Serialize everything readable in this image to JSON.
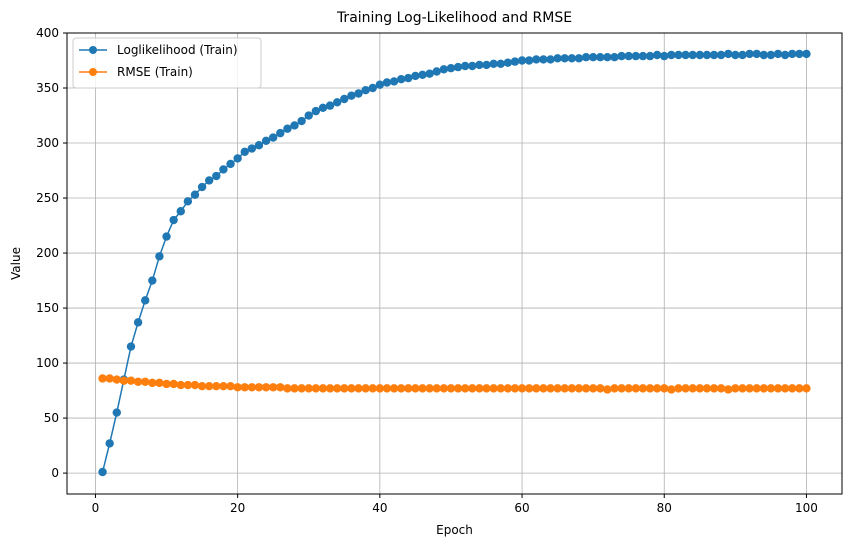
{
  "chart_data": {
    "type": "line",
    "title": "Training Log-Likelihood and RMSE",
    "xlabel": "Epoch",
    "ylabel": "Value",
    "xlim": [
      -4,
      105
    ],
    "ylim": [
      -19,
      400
    ],
    "xticks": [
      0,
      20,
      40,
      60,
      80,
      100
    ],
    "yticks": [
      0,
      50,
      100,
      150,
      200,
      250,
      300,
      350,
      400
    ],
    "grid": true,
    "legend_position": "top-left",
    "marker": "circle",
    "x": [
      1,
      2,
      3,
      4,
      5,
      6,
      7,
      8,
      9,
      10,
      11,
      12,
      13,
      14,
      15,
      16,
      17,
      18,
      19,
      20,
      21,
      22,
      23,
      24,
      25,
      26,
      27,
      28,
      29,
      30,
      31,
      32,
      33,
      34,
      35,
      36,
      37,
      38,
      39,
      40,
      41,
      42,
      43,
      44,
      45,
      46,
      47,
      48,
      49,
      50,
      51,
      52,
      53,
      54,
      55,
      56,
      57,
      58,
      59,
      60,
      61,
      62,
      63,
      64,
      65,
      66,
      67,
      68,
      69,
      70,
      71,
      72,
      73,
      74,
      75,
      76,
      77,
      78,
      79,
      80,
      81,
      82,
      83,
      84,
      85,
      86,
      87,
      88,
      89,
      90,
      91,
      92,
      93,
      94,
      95,
      96,
      97,
      98,
      99,
      100
    ],
    "series": [
      {
        "name": "Loglikelihood (Train)",
        "color": "#1f77b4",
        "values": [
          1,
          27,
          55,
          85,
          115,
          137,
          157,
          175,
          197,
          215,
          230,
          238,
          247,
          253,
          260,
          266,
          270,
          276,
          281,
          286,
          292,
          295,
          298,
          302,
          305,
          309,
          313,
          316,
          320,
          325,
          329,
          332,
          334,
          337,
          340,
          343,
          345,
          348,
          350,
          353,
          355,
          356,
          358,
          359,
          361,
          362,
          363,
          365,
          367,
          368,
          369,
          370,
          370,
          371,
          371,
          372,
          372,
          373,
          374,
          375,
          375,
          376,
          376,
          376,
          377,
          377,
          377,
          377,
          378,
          378,
          378,
          378,
          378,
          379,
          379,
          379,
          379,
          379,
          380,
          379,
          380,
          380,
          380,
          380,
          380,
          380,
          380,
          380,
          381,
          380,
          380,
          381,
          381,
          380,
          380,
          381,
          380,
          381,
          381,
          381
        ]
      },
      {
        "name": "RMSE (Train)",
        "color": "#ff7f0e",
        "values": [
          86,
          86,
          85,
          84,
          84,
          83,
          83,
          82,
          82,
          81,
          81,
          80,
          80,
          80,
          79,
          79,
          79,
          79,
          79,
          78,
          78,
          78,
          78,
          78,
          78,
          78,
          77,
          77,
          77,
          77,
          77,
          77,
          77,
          77,
          77,
          77,
          77,
          77,
          77,
          77,
          77,
          77,
          77,
          77,
          77,
          77,
          77,
          77,
          77,
          77,
          77,
          77,
          77,
          77,
          77,
          77,
          77,
          77,
          77,
          77,
          77,
          77,
          77,
          77,
          77,
          77,
          77,
          77,
          77,
          77,
          77,
          76,
          77,
          77,
          77,
          77,
          77,
          77,
          77,
          77,
          76,
          77,
          77,
          77,
          77,
          77,
          77,
          77,
          76,
          77,
          77,
          77,
          77,
          77,
          77,
          77,
          77,
          77,
          77,
          77
        ]
      }
    ]
  }
}
